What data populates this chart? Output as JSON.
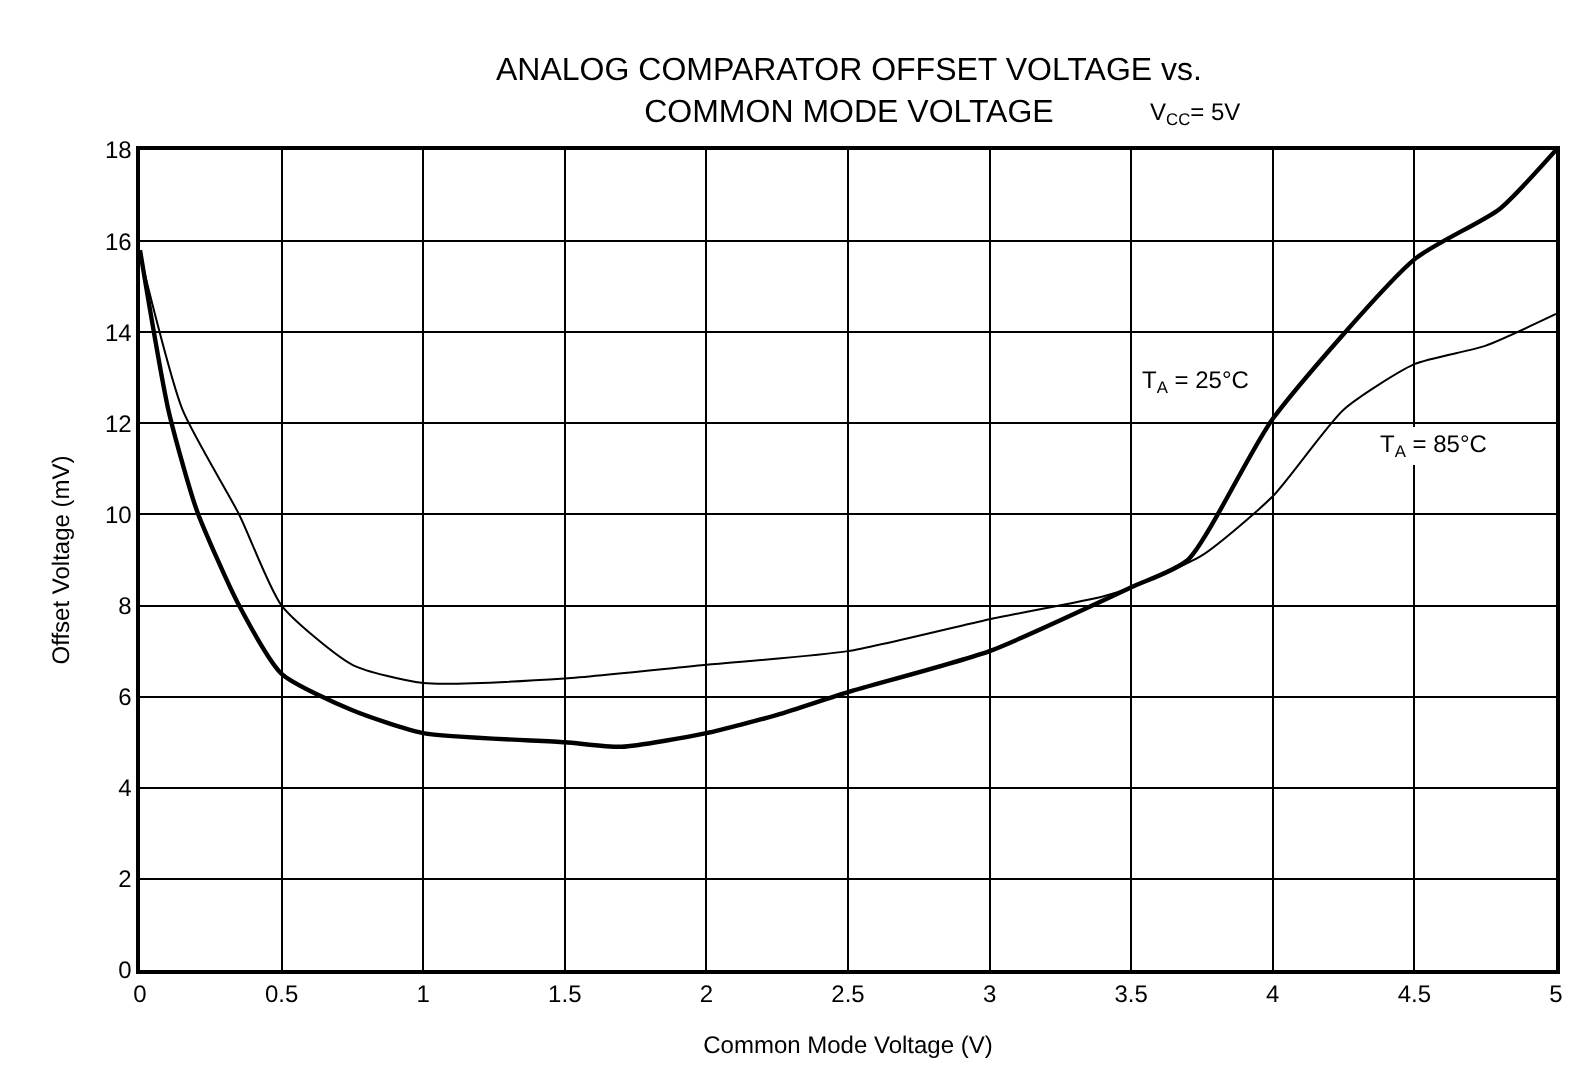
{
  "chart_data": {
    "type": "line",
    "title": "ANALOG COMPARATOR OFFSET VOLTAGE vs.\nCOMMON MODE VOLTAGE",
    "subtitle": "V$_{CC}$= 5V",
    "xlabel": "Common Mode Voltage (V)",
    "ylabel": "Offset Voltage (mV)",
    "series": [
      {
        "name": "T$_{A}$ = 25°C",
        "color": "#000000",
        "x": [
          0,
          0.1,
          0.2,
          0.35,
          0.5,
          0.75,
          1,
          1.5,
          1.7,
          2,
          2.25,
          2.5,
          3,
          3.5,
          3.7,
          4,
          4.5,
          4.8,
          5
        ],
        "values": [
          15.8,
          12.3,
          10.1,
          8.0,
          6.5,
          5.7,
          5.2,
          5.0,
          4.9,
          5.2,
          5.6,
          6.1,
          7.0,
          8.4,
          9.0,
          12.1,
          15.6,
          16.7,
          18.0
        ]
      },
      {
        "name": "T$_{A}$ = 85°C",
        "color": "#000000",
        "x": [
          0,
          0.15,
          0.35,
          0.5,
          0.75,
          1,
          1.5,
          2,
          2.5,
          3,
          3.4,
          3.5,
          3.75,
          4,
          4.25,
          4.5,
          4.75,
          5
        ],
        "values": [
          15.7,
          12.3,
          10.0,
          8.0,
          6.7,
          6.3,
          6.4,
          6.7,
          7.0,
          7.7,
          8.2,
          8.4,
          9.1,
          10.4,
          12.3,
          13.3,
          13.7,
          14.4
        ]
      }
    ],
    "xlim": [
      0,
      5
    ],
    "xticks": [
      0,
      0.5,
      1,
      1.5,
      2,
      2.5,
      3,
      3.5,
      4,
      4.5,
      5
    ],
    "ylim": [
      0,
      18
    ],
    "yticks": [
      0,
      2,
      4,
      6,
      8,
      10,
      12,
      14,
      16,
      18
    ],
    "grid": true,
    "marker": "none",
    "line_style": "solid"
  }
}
